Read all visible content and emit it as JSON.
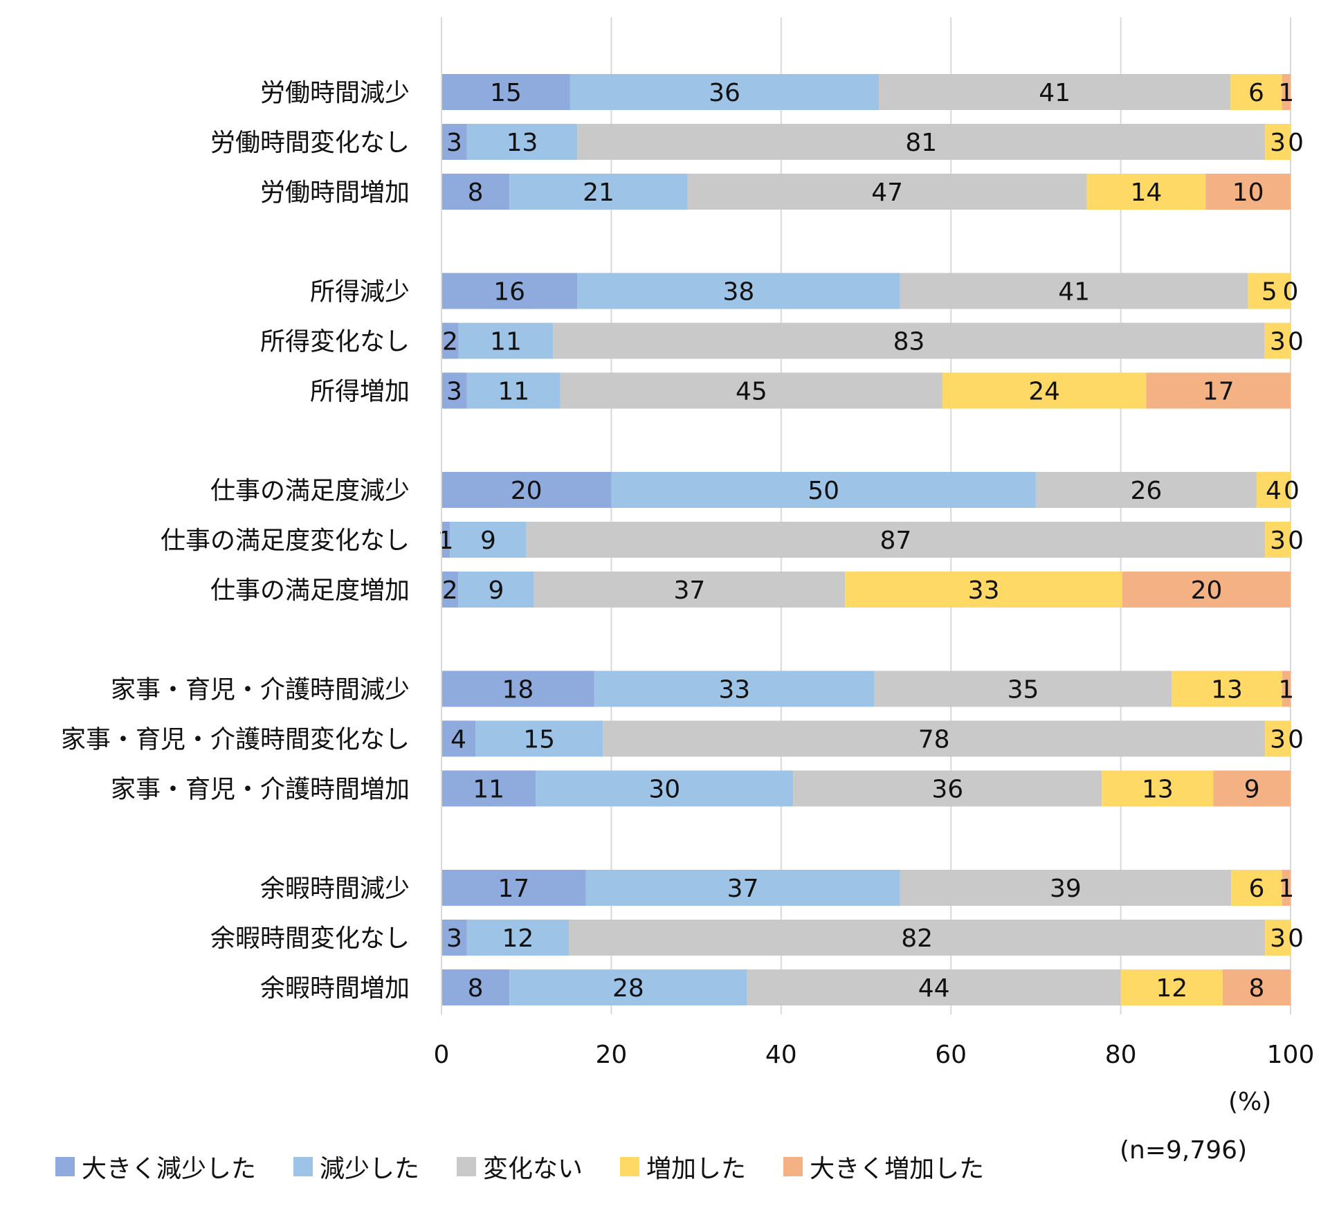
{
  "chart_data": {
    "type": "bar",
    "orientation": "horizontal",
    "stacked": true,
    "categories": [
      "労働時間減少",
      "労働時間変化なし",
      "労働時間増加",
      "所得減少",
      "所得変化なし",
      "所得増加",
      "仕事の満足度減少",
      "仕事の満足度変化なし",
      "仕事の満足度増加",
      "家事・育児・介護時間減少",
      "家事・育児・介護時間変化なし",
      "家事・育児・介護時間増加",
      "余暇時間減少",
      "余暇時間変化なし",
      "余暇時間増加"
    ],
    "groups": [
      3,
      3,
      3,
      3,
      3
    ],
    "series": [
      {
        "name": "大きく減少した",
        "color": "#8FAADC",
        "values": [
          15,
          3,
          8,
          16,
          2,
          3,
          20,
          1,
          2,
          18,
          4,
          11,
          17,
          3,
          8
        ]
      },
      {
        "name": "減少した",
        "color": "#9DC3E6",
        "values": [
          36,
          13,
          21,
          38,
          11,
          11,
          50,
          9,
          9,
          33,
          15,
          30,
          37,
          12,
          28
        ]
      },
      {
        "name": "変化ない",
        "color": "#C9C9C9",
        "values": [
          41,
          81,
          47,
          41,
          83,
          45,
          26,
          87,
          37,
          35,
          78,
          36,
          39,
          82,
          44
        ]
      },
      {
        "name": "増加した",
        "color": "#FFD966",
        "values": [
          6,
          3,
          14,
          5,
          3,
          24,
          4,
          3,
          33,
          13,
          3,
          13,
          6,
          3,
          12
        ]
      },
      {
        "name": "大きく増加した",
        "color": "#F4B183",
        "values": [
          1,
          0,
          10,
          0,
          0,
          17,
          0,
          0,
          20,
          1,
          0,
          9,
          1,
          0,
          8
        ]
      }
    ],
    "xlim": [
      0,
      100
    ],
    "xticks": [
      "0",
      "20",
      "40",
      "60",
      "80",
      "100"
    ],
    "xlabel": "(%)",
    "note": "(n=9,796)",
    "grid": "vertical",
    "legend_position": "bottom"
  }
}
